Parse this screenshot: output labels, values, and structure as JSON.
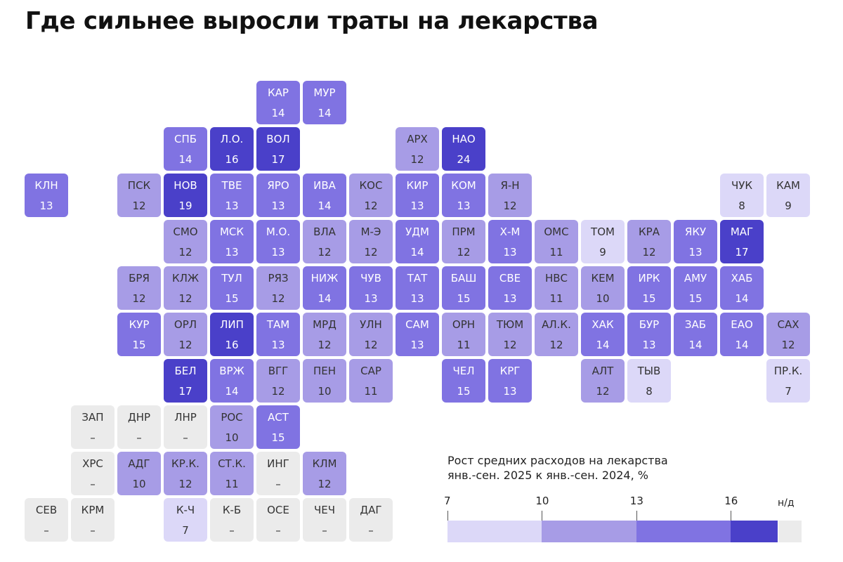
{
  "title": "Где сильнее выросли траты на лекарства",
  "legend": {
    "title_lines": [
      "Рост средних расходов на лекарства",
      "янв.-сен. 2025 к янв.-сен. 2024, %"
    ],
    "ticks": [
      "7",
      "10",
      "13",
      "16"
    ],
    "no_data_label": "н/д",
    "bins": [
      {
        "from": 7,
        "to": 10,
        "color": "#dcd8f8"
      },
      {
        "from": 10,
        "to": 13,
        "color": "#a79ce6"
      },
      {
        "from": 13,
        "to": 16,
        "color": "#8073e2"
      },
      {
        "from": 16,
        "to": 17.5,
        "color": "#4a40c9"
      }
    ],
    "no_data_color": "#ebebeb"
  },
  "chart_data": {
    "type": "heatmap",
    "title": "Где сильнее выросли траты на лекарства",
    "value_label": "Рост средних расходов на лекарства янв.-сен. 2025 к янв.-сен. 2024, %",
    "regions": [
      {
        "code": "КАР",
        "value": 14,
        "col": 5,
        "row": 0
      },
      {
        "code": "МУР",
        "value": 14,
        "col": 6,
        "row": 0
      },
      {
        "code": "СПБ",
        "value": 14,
        "col": 3,
        "row": 1
      },
      {
        "code": "Л.О.",
        "value": 16,
        "col": 4,
        "row": 1
      },
      {
        "code": "ВОЛ",
        "value": 17,
        "col": 5,
        "row": 1
      },
      {
        "code": "АРХ",
        "value": 12,
        "col": 8,
        "row": 1
      },
      {
        "code": "НАО",
        "value": 24,
        "col": 9,
        "row": 1
      },
      {
        "code": "КЛН",
        "value": 13,
        "col": 0,
        "row": 2
      },
      {
        "code": "ПСК",
        "value": 12,
        "col": 2,
        "row": 2
      },
      {
        "code": "НОВ",
        "value": 19,
        "col": 3,
        "row": 2
      },
      {
        "code": "ТВЕ",
        "value": 13,
        "col": 4,
        "row": 2
      },
      {
        "code": "ЯРО",
        "value": 13,
        "col": 5,
        "row": 2
      },
      {
        "code": "ИВА",
        "value": 14,
        "col": 6,
        "row": 2
      },
      {
        "code": "КОС",
        "value": 12,
        "col": 7,
        "row": 2
      },
      {
        "code": "КИР",
        "value": 13,
        "col": 8,
        "row": 2
      },
      {
        "code": "КОМ",
        "value": 13,
        "col": 9,
        "row": 2
      },
      {
        "code": "Я-Н",
        "value": 12,
        "col": 10,
        "row": 2
      },
      {
        "code": "ЧУК",
        "value": 8,
        "col": 15,
        "row": 2
      },
      {
        "code": "КАМ",
        "value": 9,
        "col": 16,
        "row": 2
      },
      {
        "code": "СМО",
        "value": 12,
        "col": 3,
        "row": 3
      },
      {
        "code": "МСК",
        "value": 13,
        "col": 4,
        "row": 3
      },
      {
        "code": "М.О.",
        "value": 13,
        "col": 5,
        "row": 3
      },
      {
        "code": "ВЛА",
        "value": 12,
        "col": 6,
        "row": 3
      },
      {
        "code": "М-Э",
        "value": 12,
        "col": 7,
        "row": 3
      },
      {
        "code": "УДМ",
        "value": 14,
        "col": 8,
        "row": 3
      },
      {
        "code": "ПРМ",
        "value": 12,
        "col": 9,
        "row": 3
      },
      {
        "code": "Х-М",
        "value": 13,
        "col": 10,
        "row": 3
      },
      {
        "code": "ОМС",
        "value": 11,
        "col": 11,
        "row": 3
      },
      {
        "code": "ТОМ",
        "value": 9,
        "col": 12,
        "row": 3
      },
      {
        "code": "КРА",
        "value": 12,
        "col": 13,
        "row": 3
      },
      {
        "code": "ЯКУ",
        "value": 13,
        "col": 14,
        "row": 3
      },
      {
        "code": "МАГ",
        "value": 17,
        "col": 15,
        "row": 3
      },
      {
        "code": "БРЯ",
        "value": 12,
        "col": 2,
        "row": 4
      },
      {
        "code": "КЛЖ",
        "value": 12,
        "col": 3,
        "row": 4
      },
      {
        "code": "ТУЛ",
        "value": 15,
        "col": 4,
        "row": 4
      },
      {
        "code": "РЯЗ",
        "value": 12,
        "col": 5,
        "row": 4
      },
      {
        "code": "НИЖ",
        "value": 14,
        "col": 6,
        "row": 4
      },
      {
        "code": "ЧУВ",
        "value": 13,
        "col": 7,
        "row": 4
      },
      {
        "code": "ТАТ",
        "value": 13,
        "col": 8,
        "row": 4
      },
      {
        "code": "БАШ",
        "value": 15,
        "col": 9,
        "row": 4
      },
      {
        "code": "СВЕ",
        "value": 13,
        "col": 10,
        "row": 4
      },
      {
        "code": "НВС",
        "value": 11,
        "col": 11,
        "row": 4
      },
      {
        "code": "КЕМ",
        "value": 10,
        "col": 12,
        "row": 4
      },
      {
        "code": "ИРК",
        "value": 15,
        "col": 13,
        "row": 4
      },
      {
        "code": "АМУ",
        "value": 15,
        "col": 14,
        "row": 4
      },
      {
        "code": "ХАБ",
        "value": 14,
        "col": 15,
        "row": 4
      },
      {
        "code": "КУР",
        "value": 15,
        "col": 2,
        "row": 5
      },
      {
        "code": "ОРЛ",
        "value": 12,
        "col": 3,
        "row": 5
      },
      {
        "code": "ЛИП",
        "value": 16,
        "col": 4,
        "row": 5
      },
      {
        "code": "ТАМ",
        "value": 13,
        "col": 5,
        "row": 5
      },
      {
        "code": "МРД",
        "value": 12,
        "col": 6,
        "row": 5
      },
      {
        "code": "УЛН",
        "value": 12,
        "col": 7,
        "row": 5
      },
      {
        "code": "САМ",
        "value": 13,
        "col": 8,
        "row": 5
      },
      {
        "code": "ОРН",
        "value": 11,
        "col": 9,
        "row": 5
      },
      {
        "code": "ТЮМ",
        "value": 12,
        "col": 10,
        "row": 5
      },
      {
        "code": "АЛ.К.",
        "value": 12,
        "col": 11,
        "row": 5
      },
      {
        "code": "ХАК",
        "value": 14,
        "col": 12,
        "row": 5
      },
      {
        "code": "БУР",
        "value": 13,
        "col": 13,
        "row": 5
      },
      {
        "code": "ЗАБ",
        "value": 14,
        "col": 14,
        "row": 5
      },
      {
        "code": "ЕАО",
        "value": 14,
        "col": 15,
        "row": 5
      },
      {
        "code": "САХ",
        "value": 12,
        "col": 16,
        "row": 5
      },
      {
        "code": "БЕЛ",
        "value": 17,
        "col": 3,
        "row": 6
      },
      {
        "code": "ВРЖ",
        "value": 14,
        "col": 4,
        "row": 6
      },
      {
        "code": "ВГГ",
        "value": 12,
        "col": 5,
        "row": 6
      },
      {
        "code": "ПЕН",
        "value": 10,
        "col": 6,
        "row": 6
      },
      {
        "code": "САР",
        "value": 11,
        "col": 7,
        "row": 6
      },
      {
        "code": "ЧЕЛ",
        "value": 15,
        "col": 9,
        "row": 6
      },
      {
        "code": "КРГ",
        "value": 13,
        "col": 10,
        "row": 6
      },
      {
        "code": "АЛТ",
        "value": 12,
        "col": 12,
        "row": 6
      },
      {
        "code": "ТЫВ",
        "value": 8,
        "col": 13,
        "row": 6
      },
      {
        "code": "ПР.К.",
        "value": 7,
        "col": 16,
        "row": 6
      },
      {
        "code": "ЗАП",
        "value": null,
        "label": "–",
        "col": 1,
        "row": 7
      },
      {
        "code": "ДНР",
        "value": null,
        "label": "–",
        "col": 2,
        "row": 7
      },
      {
        "code": "ЛНР",
        "value": null,
        "label": "–",
        "col": 3,
        "row": 7
      },
      {
        "code": "РОС",
        "value": 10,
        "col": 4,
        "row": 7
      },
      {
        "code": "АСТ",
        "value": 15,
        "col": 5,
        "row": 7
      },
      {
        "code": "ХРС",
        "value": null,
        "label": "–",
        "col": 1,
        "row": 8
      },
      {
        "code": "АДГ",
        "value": 10,
        "col": 2,
        "row": 8
      },
      {
        "code": "КР.К.",
        "value": 12,
        "col": 3,
        "row": 8
      },
      {
        "code": "СТ.К.",
        "value": 11,
        "col": 4,
        "row": 8
      },
      {
        "code": "ИНГ",
        "value": null,
        "label": "–",
        "col": 5,
        "row": 8
      },
      {
        "code": "КЛМ",
        "value": 12,
        "col": 6,
        "row": 8
      },
      {
        "code": "СЕВ",
        "value": null,
        "label": "–",
        "col": 0,
        "row": 9
      },
      {
        "code": "КРМ",
        "value": null,
        "label": "–",
        "col": 1,
        "row": 9
      },
      {
        "code": "К-Ч",
        "value": 7,
        "col": 3,
        "row": 9
      },
      {
        "code": "К-Б",
        "value": null,
        "label": "–",
        "col": 4,
        "row": 9
      },
      {
        "code": "ОСЕ",
        "value": null,
        "label": "–",
        "col": 5,
        "row": 9
      },
      {
        "code": "ЧЕЧ",
        "value": null,
        "label": "–",
        "col": 6,
        "row": 9
      },
      {
        "code": "ДАГ",
        "value": null,
        "label": "–",
        "col": 7,
        "row": 9
      }
    ]
  }
}
